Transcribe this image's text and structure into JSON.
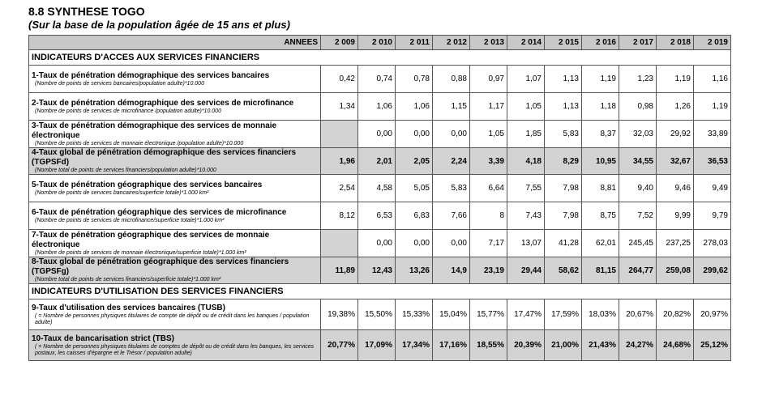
{
  "title": "8.8 SYNTHESE TOGO",
  "subtitle": "(Sur la base de la population âgée de 15 ans et plus)",
  "table": {
    "header": {
      "label": "ANNEES",
      "years": [
        "2 009",
        "2 010",
        "2 011",
        "2 012",
        "2 013",
        "2 014",
        "2 015",
        "2 016",
        "2 017",
        "2 018",
        "2 019"
      ]
    },
    "rows": [
      {
        "section": "INDICATEURS D'ACCES AUX SERVICES FINANCIERS"
      },
      {
        "label": "1-Taux de pénétration démographique des services bancaires",
        "note": "(Nombre de points de services bancaires/population adulte)*10.000",
        "values": [
          "0,42",
          "0,74",
          "0,78",
          "0,88",
          "0,97",
          "1,07",
          "1,13",
          "1,19",
          "1,23",
          "1,19",
          "1,16"
        ],
        "shaded": false
      },
      {
        "label": "2-Taux de pénétration démographique des services de microfinance",
        "note": "(Nombre de points de services de microfinance /population adulte)*10.000",
        "values": [
          "1,34",
          "1,06",
          "1,06",
          "1,15",
          "1,17",
          "1,05",
          "1,13",
          "1,18",
          "0,98",
          "1,26",
          "1,19"
        ],
        "shaded": false
      },
      {
        "label": "3-Taux de pénétration démographique des services de monnaie électronique",
        "note": "(Nombre de points de services de monnaie électronique /population adulte)*10.000",
        "values": [
          null,
          "0,00",
          "0,00",
          "0,00",
          "1,05",
          "1,85",
          "5,83",
          "8,37",
          "32,03",
          "29,92",
          "33,89"
        ],
        "shaded": false
      },
      {
        "label": "4-Taux global de pénétration démographique des services financiers (TGPSFd)",
        "note": "(Nombre total de points de services financiers/population adulte)*10.000",
        "values": [
          "1,96",
          "2,01",
          "2,05",
          "2,24",
          "3,39",
          "4,18",
          "8,29",
          "10,95",
          "34,55",
          "32,67",
          "36,53"
        ],
        "shaded": true
      },
      {
        "label": "5-Taux de pénétration géographique des services bancaires",
        "note": "(Nombre de points de services bancaires/superficie totale)*1.000 km²",
        "values": [
          "2,54",
          "4,58",
          "5,05",
          "5,83",
          "6,64",
          "7,55",
          "7,98",
          "8,81",
          "9,40",
          "9,46",
          "9,49"
        ],
        "shaded": false
      },
      {
        "label": "6-Taux de pénétration géographique des services de microfinance",
        "note": "(Nombre de points de services de microfinance/superficie totale)*1.000 km²",
        "values": [
          "8,12",
          "6,53",
          "6,83",
          "7,66",
          "8",
          "7,43",
          "7,98",
          "8,75",
          "7,52",
          "9,99",
          "9,79"
        ],
        "shaded": false
      },
      {
        "label": "7-Taux de pénétration géographique des services de monnaie électronique",
        "note": "(Nombre de points de services de monnaie électronique/superficie totale)*1.000 km²",
        "values": [
          null,
          "0,00",
          "0,00",
          "0,00",
          "7,17",
          "13,07",
          "41,28",
          "62,01",
          "245,45",
          "237,25",
          "278,03"
        ],
        "shaded": false
      },
      {
        "label": "8-Taux global de pénétration géographique des services financiers (TGPSFg)",
        "note": "(Nombre total de points de services financiers/superficie totale)*1.000 km²",
        "values": [
          "11,89",
          "12,43",
          "13,26",
          "14,9",
          "23,19",
          "29,44",
          "58,62",
          "81,15",
          "264,77",
          "259,08",
          "299,62"
        ],
        "shaded": true
      },
      {
        "section": "INDICATEURS D'UTILISATION DES SERVICES FINANCIERS"
      },
      {
        "label": "9-Taux d'utilisation des services bancaires (TUSB)",
        "note": "( = Nombre de personnes physiques titulaires de compte de dépôt ou de crédit dans les banques / population adulte)",
        "values": [
          "19,38%",
          "15,50%",
          "15,33%",
          "15,04%",
          "15,77%",
          "17,47%",
          "17,59%",
          "18,03%",
          "20,67%",
          "20,82%",
          "20,97%"
        ],
        "shaded": false
      },
      {
        "label": "10-Taux de bancarisation strict (TBS)",
        "note": "( = Nombre de personnes physiques titulaires de comptes de dépôt ou de crédit dans les banques, les services postaux, les caisses d'épargne et le Trésor / population adulte)",
        "values": [
          "20,77%",
          "17,09%",
          "17,34%",
          "17,16%",
          "18,55%",
          "20,39%",
          "21,00%",
          "21,43%",
          "24,27%",
          "24,68%",
          "25,12%"
        ],
        "shaded": true
      }
    ]
  }
}
